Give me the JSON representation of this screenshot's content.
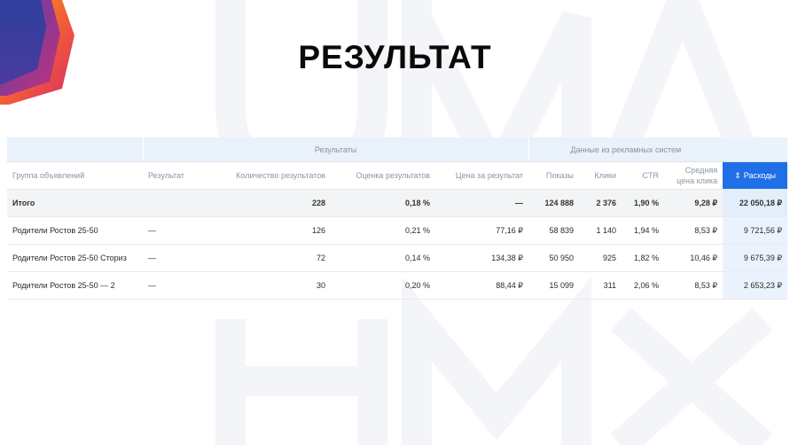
{
  "page": {
    "title": "РЕЗУЛЬТАТ"
  },
  "table": {
    "group_headers": {
      "results": "Результаты",
      "ad_systems": "Данные из рекламных систем"
    },
    "columns": {
      "ad_group": "Группа объявлений",
      "result": "Результат",
      "results_count": "Количество результатов",
      "results_rating": "Оценка результатов",
      "cost_per_result": "Цена за результат",
      "impressions": "Показы",
      "clicks": "Клики",
      "ctr": "CTR",
      "avg_cpc": "Средняя цена клика",
      "spend": "Расходы"
    },
    "sort_icon": "⇕",
    "total": {
      "ad_group": "Итого",
      "result": "",
      "results_count": "228",
      "results_rating": "0,18 %",
      "cost_per_result": "—",
      "impressions": "124 888",
      "clicks": "2 376",
      "ctr": "1,90 %",
      "avg_cpc": "9,28 ₽",
      "spend": "22 050,18 ₽"
    },
    "rows": [
      {
        "ad_group": "Родители Ростов 25-50",
        "result": "—",
        "results_count": "126",
        "results_rating": "0,21 %",
        "cost_per_result": "77,16 ₽",
        "impressions": "58 839",
        "clicks": "1 140",
        "ctr": "1,94 %",
        "avg_cpc": "8,53 ₽",
        "spend": "9 721,56 ₽"
      },
      {
        "ad_group": "Родители Ростов 25-50 Сториз",
        "result": "—",
        "results_count": "72",
        "results_rating": "0,14 %",
        "cost_per_result": "134,38 ₽",
        "impressions": "50 950",
        "clicks": "925",
        "ctr": "1,82 %",
        "avg_cpc": "10,46 ₽",
        "spend": "9 675,39 ₽"
      },
      {
        "ad_group": "Родители Ростов 25-50 — 2",
        "result": "—",
        "results_count": "30",
        "results_rating": "0,20 %",
        "cost_per_result": "88,44 ₽",
        "impressions": "15 099",
        "clicks": "311",
        "ctr": "2,06 %",
        "avg_cpc": "8,53 ₽",
        "spend": "2 653,23 ₽"
      }
    ]
  },
  "colors": {
    "accent": "#1e6fe8",
    "header_bg": "#e9f2fb",
    "total_bg": "#f2f4f6",
    "spend_col_bg": "#eaf3fd",
    "logo_orange": "#f7941d",
    "logo_purple": "#3a3a9a"
  }
}
